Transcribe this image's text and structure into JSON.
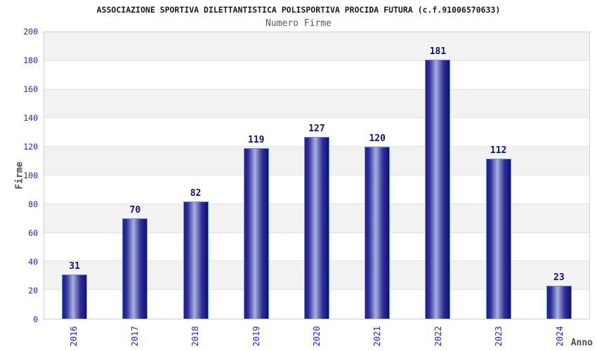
{
  "chart_data": {
    "type": "bar",
    "title": "ASSOCIAZIONE SPORTIVA DILETTANTISTICA POLISPORTIVA PROCIDA FUTURA (c.f.91006570633)",
    "subtitle": "Numero Firme",
    "xlabel": "Anno",
    "ylabel": "Firme",
    "categories": [
      "2016",
      "2017",
      "2018",
      "2019",
      "2020",
      "2021",
      "2022",
      "2023",
      "2024"
    ],
    "values": [
      31,
      70,
      82,
      119,
      127,
      120,
      181,
      112,
      23
    ],
    "ylim": [
      0,
      200
    ],
    "ytick_step": 20,
    "yticks": [
      0,
      20,
      40,
      60,
      80,
      100,
      120,
      140,
      160,
      180,
      200
    ],
    "grid": "alternating horizontal bands, gray band starts at top (180-200)",
    "legend": "none",
    "bar_labels_shown": true,
    "x_label_rotation_deg": -90,
    "colors": {
      "title_color": "#1a1a1a",
      "subtitle_color": "#595959",
      "axis_title_color": "#4d4d4d",
      "tick_label_color": "#2626cc",
      "value_label_color": "#11117a",
      "bar_edge_dark_left": "#1c1c8e",
      "bar_mid_light": "#aab1dd",
      "bar_edge_dark_right": "#0f0f72",
      "bar_border": "#5b9bd5",
      "band_gray": "#f2f2f2",
      "band_white": "#ffffff",
      "gridline": "#e3e3e3",
      "plot_border": "#d2d2d2",
      "background": "#ffffff"
    }
  }
}
